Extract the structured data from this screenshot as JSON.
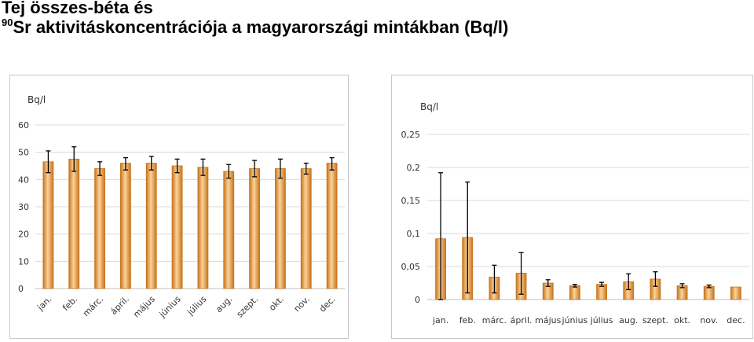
{
  "title": {
    "line1": "Tej összes-béta és",
    "isotope_mass": "90",
    "line2": "Sr aktivitáskoncentrációja a magyarországi mintákban (Bq/l)"
  },
  "colors": {
    "bar_fill": "#F2A24A",
    "bar_edge": "#C8741C",
    "bar_highlight": "#FBD39A",
    "error_bar": "#000000",
    "gridline": "#D9D9D9",
    "axis_text": "#333333"
  },
  "chart_data": [
    {
      "type": "bar",
      "ylabel": "Bq/l",
      "ylim": [
        0,
        60
      ],
      "yticks": [
        "0",
        "10",
        "20",
        "30",
        "40",
        "50",
        "60"
      ],
      "categories": [
        "jan.",
        "feb.",
        "márc.",
        "ápril.",
        "május",
        "június",
        "július",
        "aug.",
        "szept.",
        "okt.",
        "nov.",
        "dec."
      ],
      "values": [
        46.5,
        47.5,
        44,
        46,
        46,
        45,
        44.5,
        43,
        44,
        44,
        44,
        46
      ],
      "error_low": [
        42.5,
        43,
        41.5,
        43.5,
        43.5,
        42.5,
        41.5,
        40.5,
        41,
        40.5,
        42,
        43.5
      ],
      "error_high": [
        50.5,
        52,
        46.5,
        48,
        48.5,
        47.5,
        47.5,
        45.5,
        47,
        47.5,
        46,
        48
      ],
      "grid": true,
      "tick_label_rotation": "-45",
      "legend": "none"
    },
    {
      "type": "bar",
      "ylabel": "Bq/l",
      "ylim": [
        0,
        0.25
      ],
      "yticks": [
        "0",
        "0,05",
        "0,1",
        "0,15",
        "0,2",
        "0,25"
      ],
      "categories": [
        "jan.",
        "feb.",
        "márc.",
        "ápril.",
        "május",
        "június",
        "július",
        "aug.",
        "szept.",
        "okt.",
        "nov.",
        "dec."
      ],
      "values": [
        0.092,
        0.094,
        0.034,
        0.04,
        0.025,
        0.021,
        0.023,
        0.027,
        0.031,
        0.021,
        0.02,
        0.019
      ],
      "error_low": [
        0,
        0.01,
        0.01,
        0.008,
        0.02,
        0.019,
        0.02,
        0.015,
        0.02,
        0.018,
        0.018,
        null
      ],
      "error_high": [
        0.192,
        0.178,
        0.052,
        0.071,
        0.03,
        0.023,
        0.026,
        0.039,
        0.042,
        0.024,
        0.022,
        null
      ],
      "grid": true,
      "tick_label_rotation": "0",
      "legend": "none"
    }
  ]
}
